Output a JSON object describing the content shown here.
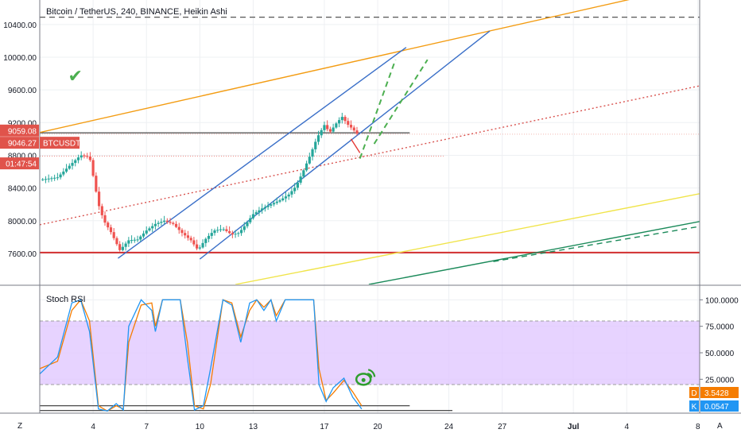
{
  "chart_data": [
    {
      "type": "candlestick",
      "title": "Bitcoin / TetherUS, 240, BINANCE, Heikin Ashi",
      "y_ticks": [
        10400,
        10000,
        9600,
        9200,
        8800,
        8400,
        8000,
        7600
      ],
      "y_tick_labels": [
        "10400.00",
        "10000.00",
        "9600.00",
        "9200.00",
        "8800.00",
        "8400.00",
        "8000.00",
        "7600.00"
      ],
      "ylim": [
        7220,
        10700
      ],
      "x_ticks": [
        {
          "label": "4",
          "day": 4
        },
        {
          "label": "7",
          "day": 7
        },
        {
          "label": "10",
          "day": 10
        },
        {
          "label": "13",
          "day": 13
        },
        {
          "label": "17",
          "day": 17
        },
        {
          "label": "20",
          "day": 20
        },
        {
          "label": "24",
          "day": 24
        },
        {
          "label": "27",
          "day": 27
        },
        {
          "label": "Jul",
          "day": 31
        },
        {
          "label": "4",
          "day": 34
        },
        {
          "label": "8",
          "day": 38
        }
      ],
      "xlim": [
        1,
        38.1
      ],
      "price_labels": [
        {
          "value": "9059.08",
          "price": 9059,
          "color": "#e0534b"
        },
        {
          "value": "9046.27",
          "price": 9046,
          "tag": "BTCUSDT",
          "color": "#e0534b"
        },
        {
          "value": "01:47:54",
          "price": 8745,
          "color": "#e0534b"
        }
      ],
      "up_color": "#26a69a",
      "down_color": "#ef5350",
      "candle_path": [
        [
          1,
          8500
        ],
        [
          2,
          8530
        ],
        [
          2.8,
          8700
        ],
        [
          3.3,
          8800
        ],
        [
          3.8,
          8780
        ],
        [
          4,
          8550
        ],
        [
          4.3,
          8200
        ],
        [
          4.6,
          8000
        ],
        [
          5,
          7860
        ],
        [
          5.5,
          7640
        ],
        [
          6,
          7760
        ],
        [
          6.5,
          7770
        ],
        [
          7,
          7880
        ],
        [
          7.5,
          7960
        ],
        [
          8,
          8000
        ],
        [
          8.5,
          7960
        ],
        [
          9,
          7850
        ],
        [
          9.5,
          7760
        ],
        [
          9.9,
          7640
        ],
        [
          10.3,
          7770
        ],
        [
          10.8,
          7880
        ],
        [
          11.3,
          7900
        ],
        [
          11.8,
          7830
        ],
        [
          12.2,
          7850
        ],
        [
          12.6,
          7960
        ],
        [
          13,
          8080
        ],
        [
          13.5,
          8150
        ],
        [
          14,
          8200
        ],
        [
          14.5,
          8250
        ],
        [
          15,
          8320
        ],
        [
          15.4,
          8420
        ],
        [
          15.8,
          8600
        ],
        [
          16.2,
          8800
        ],
        [
          16.6,
          9020
        ],
        [
          17,
          9170
        ],
        [
          17.3,
          9080
        ],
        [
          17.7,
          9200
        ],
        [
          18,
          9270
        ],
        [
          18.3,
          9180
        ],
        [
          18.6,
          9120
        ],
        [
          18.9,
          9050
        ]
      ],
      "horizontal_levels": [
        {
          "price": 10490,
          "color": "#555555",
          "style": "dashed"
        },
        {
          "price": 9075,
          "color": "#333333",
          "style": "solid",
          "x_from": 1,
          "x_to": 21.8
        },
        {
          "price": 7610,
          "color": "#d32f2f",
          "style": "solid"
        }
      ],
      "trend_lines": [
        {
          "from": [
            1,
            9080
          ],
          "to": [
            38.1,
            10900
          ],
          "color": "#f39c12",
          "style": "solid"
        },
        {
          "from": [
            1,
            7950
          ],
          "to": [
            38.1,
            9650
          ],
          "color": "#d9534f",
          "style": "dotted"
        },
        {
          "from": [
            5.4,
            7540
          ],
          "to": [
            21.6,
            10120
          ],
          "color": "#3a6fc8",
          "style": "solid"
        },
        {
          "from": [
            10,
            7530
          ],
          "to": [
            26.3,
            10320
          ],
          "color": "#3a6fc8",
          "style": "solid"
        },
        {
          "from": [
            12,
            7220
          ],
          "to": [
            38.1,
            8330
          ],
          "color": "#f0e44a",
          "style": "solid"
        },
        {
          "from": [
            19.5,
            7220
          ],
          "to": [
            38.1,
            7990
          ],
          "color": "#1b8a5a",
          "style": "solid"
        },
        {
          "from": [
            26.5,
            7500
          ],
          "to": [
            38.1,
            7930
          ],
          "color": "#1b8a5a",
          "style": "dashed"
        },
        {
          "from": [
            19,
            8760
          ],
          "to": [
            21,
            9970
          ],
          "color": "#4caf50",
          "style": "dashed"
        },
        {
          "from": [
            19.8,
            8940
          ],
          "to": [
            22.8,
            9970
          ],
          "color": "#4caf50",
          "style": "dashed"
        },
        {
          "from": [
            18.5,
            9000
          ],
          "to": [
            19,
            8830
          ],
          "color": "#e53935",
          "style": "solid"
        }
      ],
      "annotations": [
        {
          "glyph": "✔",
          "day": 3,
          "price": 9700,
          "color": "#4caf50"
        }
      ]
    },
    {
      "type": "line",
      "title": "Stoch RSI",
      "ylim": [
        -7,
        113
      ],
      "y_ticks": [
        100,
        75,
        50,
        25
      ],
      "y_tick_labels": [
        "100.0000",
        "75.0000",
        "50.0000",
        "25.0000"
      ],
      "band": {
        "from": 20,
        "to": 80,
        "color": "#e1c8ff"
      },
      "series": [
        {
          "name": "D",
          "label": "3.5428",
          "color": "#f57c00",
          "points": [
            [
              1,
              35
            ],
            [
              2,
              42
            ],
            [
              2.8,
              90
            ],
            [
              3.3,
              100
            ],
            [
              3.8,
              80
            ],
            [
              4.3,
              0
            ],
            [
              4.8,
              -5
            ],
            [
              5.3,
              0
            ],
            [
              5.7,
              -3
            ],
            [
              6,
              60
            ],
            [
              6.7,
              95
            ],
            [
              7.3,
              97
            ],
            [
              7.5,
              75
            ],
            [
              7.9,
              100
            ],
            [
              8.9,
              100
            ],
            [
              9.3,
              60
            ],
            [
              9.7,
              0
            ],
            [
              10.2,
              -3
            ],
            [
              10.6,
              20
            ],
            [
              11.3,
              100
            ],
            [
              11.8,
              97
            ],
            [
              12.3,
              65
            ],
            [
              12.8,
              90
            ],
            [
              13.2,
              100
            ],
            [
              13.6,
              93
            ],
            [
              14,
              100
            ],
            [
              14.3,
              85
            ],
            [
              14.8,
              100
            ],
            [
              16.4,
              100
            ],
            [
              16.7,
              35
            ],
            [
              17.1,
              5
            ],
            [
              17.5,
              12
            ],
            [
              18.1,
              24
            ],
            [
              18.6,
              13
            ],
            [
              19.1,
              0
            ]
          ]
        },
        {
          "name": "K",
          "label": "0.0547",
          "color": "#2196f3",
          "points": [
            [
              1,
              30
            ],
            [
              2,
              46
            ],
            [
              2.8,
              97
            ],
            [
              3.3,
              100
            ],
            [
              3.8,
              70
            ],
            [
              4.3,
              -3
            ],
            [
              4.8,
              -5
            ],
            [
              5.3,
              2
            ],
            [
              5.7,
              -4
            ],
            [
              6,
              75
            ],
            [
              6.7,
              100
            ],
            [
              7.3,
              90
            ],
            [
              7.5,
              70
            ],
            [
              7.9,
              100
            ],
            [
              8.9,
              100
            ],
            [
              9.3,
              45
            ],
            [
              9.7,
              -4
            ],
            [
              10.2,
              0
            ],
            [
              10.6,
              35
            ],
            [
              11.3,
              100
            ],
            [
              11.8,
              95
            ],
            [
              12.3,
              60
            ],
            [
              12.8,
              97
            ],
            [
              13.2,
              100
            ],
            [
              13.6,
              90
            ],
            [
              14,
              100
            ],
            [
              14.3,
              80
            ],
            [
              14.8,
              100
            ],
            [
              16.4,
              100
            ],
            [
              16.7,
              20
            ],
            [
              17.1,
              4
            ],
            [
              17.5,
              17
            ],
            [
              18.1,
              26
            ],
            [
              18.6,
              8
            ],
            [
              19.1,
              -3
            ]
          ]
        }
      ],
      "level_lines": [
        {
          "value": 0,
          "x_from": 1,
          "x_to": 21.8
        },
        {
          "value": -4.5,
          "x_from": 1,
          "x_to": 24.2
        }
      ],
      "corner_labels": [
        "Z",
        "A"
      ]
    }
  ]
}
